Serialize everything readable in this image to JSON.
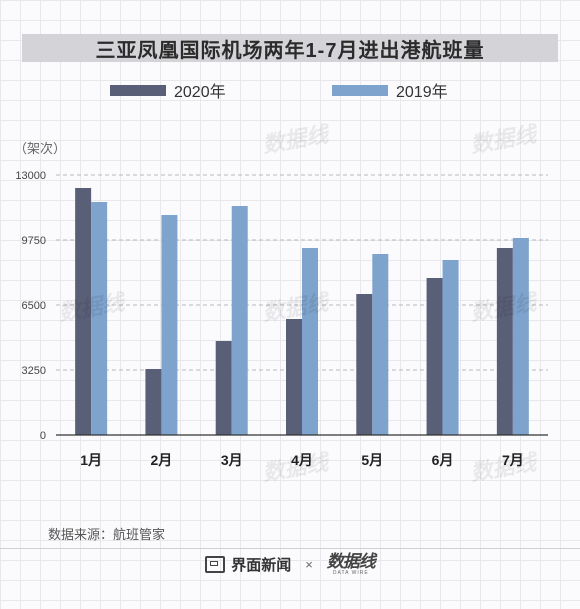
{
  "title": "三亚凤凰国际机场两年1-7月进出港航班量",
  "legend": {
    "series_a": "2020年",
    "series_b": "2019年"
  },
  "unit_label": "（架次）",
  "source": "数据来源：航班管家",
  "brands": {
    "jiemian": "界面新闻",
    "cross": "×",
    "shujuxian": "数据线",
    "shujuxian_en": "DATA WIRE"
  },
  "colors": {
    "series_2020": "#5a5f78",
    "series_2019": "#7ea3cd",
    "axis": "#333333",
    "grid": "#b8b8be"
  },
  "chart_data": {
    "type": "bar",
    "categories": [
      "1月",
      "2月",
      "3月",
      "4月",
      "5月",
      "6月",
      "7月"
    ],
    "series": [
      {
        "name": "2020年",
        "values": [
          12350,
          3300,
          4700,
          5800,
          7050,
          7850,
          9350
        ]
      },
      {
        "name": "2019年",
        "values": [
          11650,
          11000,
          11450,
          9350,
          9050,
          8750,
          9850
        ]
      }
    ],
    "yticks": [
      0,
      3250,
      6500,
      9750,
      13000
    ],
    "ylim": [
      0,
      13000
    ],
    "ylabel": "（架次）",
    "grid": true,
    "legend_position": "top"
  }
}
